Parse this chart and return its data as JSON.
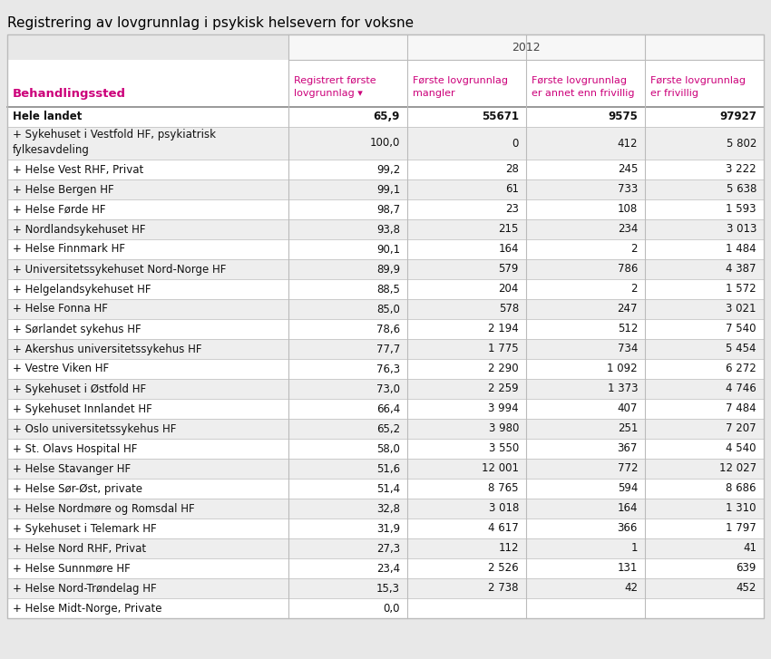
{
  "title": "Registrering av lovgrunnlag i psykisk helsevern for voksne",
  "year_header": "2012",
  "col_headers_line1": [
    "Registrert første",
    "Første lovgrunnlag",
    "Første lovgrunnlag",
    "Første lovgrunnlag"
  ],
  "col_headers_line2": [
    "lovgrunnlag",
    "mangler",
    "er annet enn frivillig",
    "er frivillig"
  ],
  "col_headers_arrow": [
    true,
    false,
    false,
    false
  ],
  "row_header": "Behandlingssted",
  "rows": [
    [
      "Hele landet",
      "65,9",
      "55671",
      "9575",
      "97927",
      true
    ],
    [
      "+ Sykehuset i Vestfold HF, psykiatrisk\nfylkesavdeling",
      "100,0",
      "0",
      "412",
      "5 802",
      false
    ],
    [
      "+ Helse Vest RHF, Privat",
      "99,2",
      "28",
      "245",
      "3 222",
      false
    ],
    [
      "+ Helse Bergen HF",
      "99,1",
      "61",
      "733",
      "5 638",
      false
    ],
    [
      "+ Helse Førde HF",
      "98,7",
      "23",
      "108",
      "1 593",
      false
    ],
    [
      "+ Nordlandsykehuset HF",
      "93,8",
      "215",
      "234",
      "3 013",
      false
    ],
    [
      "+ Helse Finnmark HF",
      "90,1",
      "164",
      "2",
      "1 484",
      false
    ],
    [
      "+ Universitetssykehuset Nord-Norge HF",
      "89,9",
      "579",
      "786",
      "4 387",
      false
    ],
    [
      "+ Helgelandsykehuset HF",
      "88,5",
      "204",
      "2",
      "1 572",
      false
    ],
    [
      "+ Helse Fonna HF",
      "85,0",
      "578",
      "247",
      "3 021",
      false
    ],
    [
      "+ Sørlandet sykehus HF",
      "78,6",
      "2 194",
      "512",
      "7 540",
      false
    ],
    [
      "+ Akershus universitetssykehus HF",
      "77,7",
      "1 775",
      "734",
      "5 454",
      false
    ],
    [
      "+ Vestre Viken HF",
      "76,3",
      "2 290",
      "1 092",
      "6 272",
      false
    ],
    [
      "+ Sykehuset i Østfold HF",
      "73,0",
      "2 259",
      "1 373",
      "4 746",
      false
    ],
    [
      "+ Sykehuset Innlandet HF",
      "66,4",
      "3 994",
      "407",
      "7 484",
      false
    ],
    [
      "+ Oslo universitetssykehus HF",
      "65,2",
      "3 980",
      "251",
      "7 207",
      false
    ],
    [
      "+ St. Olavs Hospital HF",
      "58,0",
      "3 550",
      "367",
      "4 540",
      false
    ],
    [
      "+ Helse Stavanger HF",
      "51,6",
      "12 001",
      "772",
      "12 027",
      false
    ],
    [
      "+ Helse Sør-Øst, private",
      "51,4",
      "8 765",
      "594",
      "8 686",
      false
    ],
    [
      "+ Helse Nordmøre og Romsdal HF",
      "32,8",
      "3 018",
      "164",
      "1 310",
      false
    ],
    [
      "+ Sykehuset i Telemark HF",
      "31,9",
      "4 617",
      "366",
      "1 797",
      false
    ],
    [
      "+ Helse Nord RHF, Privat",
      "27,3",
      "112",
      "1",
      "41",
      false
    ],
    [
      "+ Helse Sunnmøre HF",
      "23,4",
      "2 526",
      "131",
      "639",
      false
    ],
    [
      "+ Helse Nord-Trøndelag HF",
      "15,3",
      "2 738",
      "42",
      "452",
      false
    ],
    [
      "+ Helse Midt-Norge, Private",
      "0,0",
      "",
      "",
      "",
      false
    ]
  ],
  "bg_color": "#e8e8e8",
  "table_bg": "#ffffff",
  "header_text_color": "#cc007a",
  "title_color": "#000000",
  "border_color": "#bbbbbb",
  "alt_row_color": "#eeeeee",
  "header_year_color": "#444444",
  "fig_width": 8.5,
  "fig_height": 7.27,
  "dpi": 100
}
